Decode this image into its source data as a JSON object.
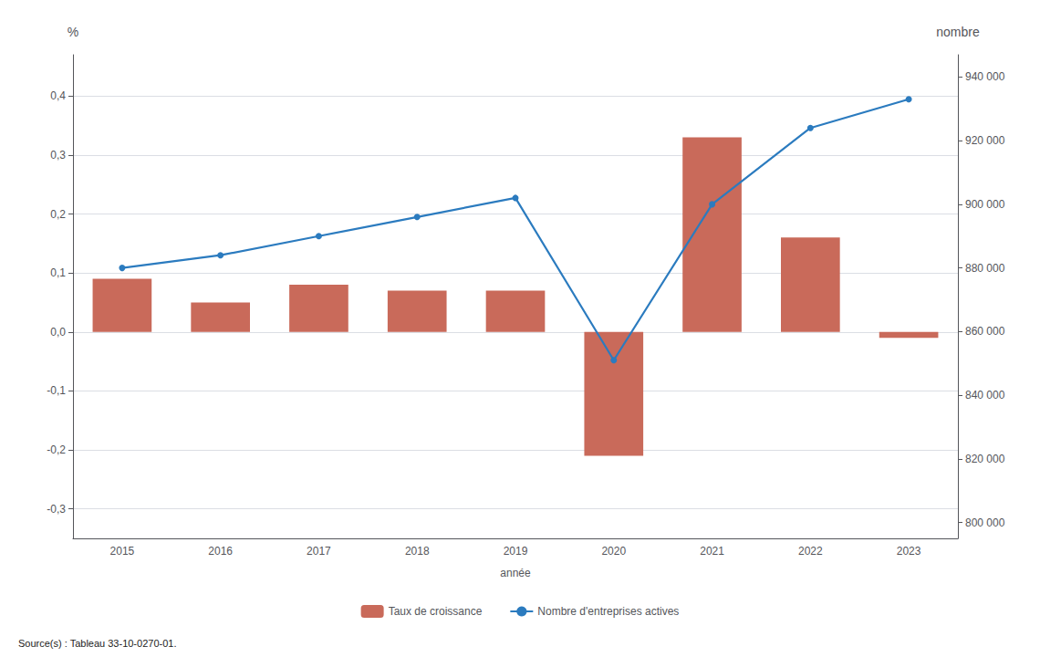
{
  "chart_data": {
    "type": "bar",
    "categories": [
      "2015",
      "2016",
      "2017",
      "2018",
      "2019",
      "2020",
      "2021",
      "2022",
      "2023"
    ],
    "xlabel": "année",
    "ylabel": "%",
    "y2label": "nombre",
    "series": [
      {
        "name": "Taux de croissance",
        "type": "bar",
        "color": "#c96a5a",
        "values": [
          0.09,
          0.05,
          0.08,
          0.07,
          0.07,
          -0.21,
          0.33,
          0.16,
          -0.01
        ]
      },
      {
        "name": "Nombre d'entreprises actives",
        "type": "line",
        "color": "#2b7bbf",
        "marker": "circle",
        "axis": "y2",
        "values": [
          880000,
          884000,
          890000,
          896000,
          902000,
          851000,
          900000,
          924000,
          933000
        ]
      }
    ],
    "ylim": [
      -0.35,
      0.47
    ],
    "yticks": [
      {
        "value": -0.3,
        "label": "-0,3"
      },
      {
        "value": -0.2,
        "label": "-0,2"
      },
      {
        "value": -0.1,
        "label": "-0,1"
      },
      {
        "value": 0.0,
        "label": "0,0"
      },
      {
        "value": 0.1,
        "label": "0,1"
      },
      {
        "value": 0.2,
        "label": "0,2"
      },
      {
        "value": 0.3,
        "label": "0,3"
      },
      {
        "value": 0.4,
        "label": "0,4"
      }
    ],
    "y2lim": [
      795000,
      947000
    ],
    "y2ticks": [
      {
        "value": 800000,
        "label": "800 000"
      },
      {
        "value": 820000,
        "label": "820 000"
      },
      {
        "value": 840000,
        "label": "840 000"
      },
      {
        "value": 860000,
        "label": "860 000"
      },
      {
        "value": 880000,
        "label": "880 000"
      },
      {
        "value": 900000,
        "label": "900 000"
      },
      {
        "value": 920000,
        "label": "920 000"
      },
      {
        "value": 940000,
        "label": "940 000"
      }
    ],
    "grid": true,
    "legend": "bottom",
    "source": "Source(s) : Tableau 33-10-0270-01."
  }
}
